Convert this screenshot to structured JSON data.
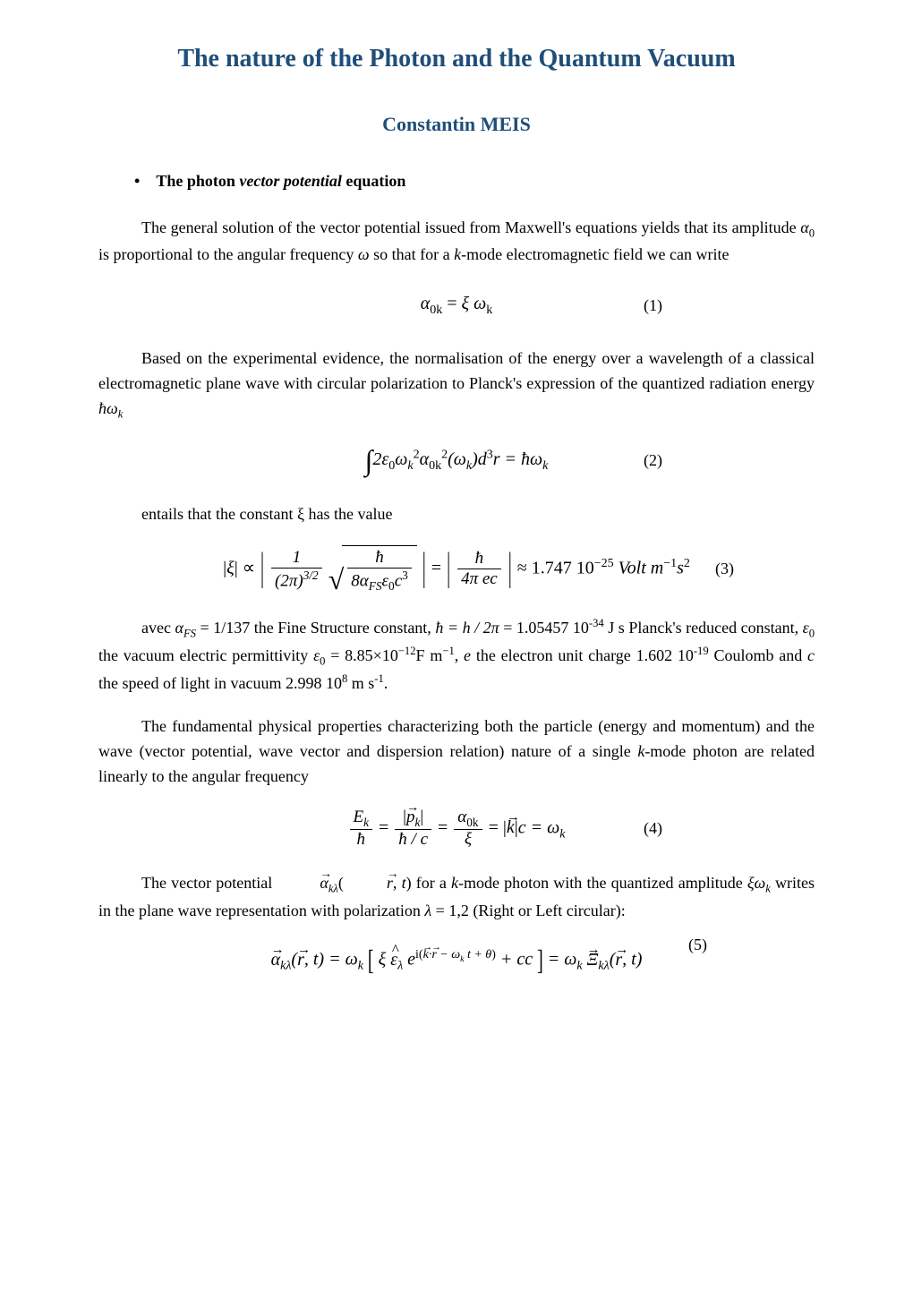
{
  "title": "The nature of the Photon and the Quantum Vacuum",
  "author": "Constantin MEIS",
  "section1": {
    "bullet": "•",
    "heading_prefix": "The photon ",
    "heading_emph": "vector potential",
    "heading_suffix": " equation"
  },
  "p1_a": "The general solution of the vector potential issued from Maxwell's equations yields that its amplitude",
  "p1_b": "is proportional to the angular frequency",
  "p1_c": "so that for a ",
  "p1_d": "-mode electromagnetic field we can write",
  "eq1": {
    "lhs_base": "α",
    "lhs_sub": "0k",
    "eq": " = ",
    "rhs_a": "ξ ω",
    "rhs_sub": "k",
    "num": "(1)"
  },
  "p2_a": "Based on the experimental evidence, the normalisation of the energy over a wavelength of a classical electromagnetic plane wave with circular polarization to Planck's expression of the quantized radiation energy",
  "eq2": {
    "pre": "2ε",
    "sub0": "0",
    "w": "ω",
    "wk": "k",
    "sq": "2",
    "a": "α",
    "a0k": "0k",
    "arg_open": "(ω",
    "arg_k": "k",
    "arg_close": ")d",
    "d3": "3",
    "r": "r = ħω",
    "rk": "k",
    "num": "(2)"
  },
  "p3": "entails that the constant ξ has the value",
  "eq3": {
    "xi": "ξ",
    "prop": " ∝ ",
    "num1": "1",
    "den1a": "(2π)",
    "den1b": "3/2",
    "hnum": "ħ",
    "hden": "8α",
    "hden_fs": "FS",
    "hden_e": "ε",
    "hden_0": "0",
    "hden_c": "c",
    "hden_3": "3",
    "eq": " = ",
    "rnum": "ħ",
    "rden": "4π ec",
    "approx": " ≈ 1.747  10",
    "exp": "−25",
    "unit": " Volt m",
    "u1": "−1",
    "s": "s",
    "u2": "2",
    "num": "(3)"
  },
  "p4_a": "avec ",
  "p4_b": " the Fine Structure constant, ",
  "p4_c": " = 1.05457 10",
  "p4_c2": " J s Planck's reduced constant, ",
  "p4_d": " the vacuum electric permittivity ",
  "p4_e": ", ",
  "p4_f": " the electron unit charge 1.602 10",
  "p4_g": " Coulomb and ",
  "p4_h": " the speed of light in vacuum 2.998 10",
  "p4_i": " m s",
  "p4_j": ".",
  "fs_val": " = 1/137",
  "hbar_def": "ħ = h / 2π",
  "exp34": "-34",
  "eps_val_a": "ε",
  "eps_val_b": " = 8.85×10",
  "eps_exp": "−12",
  "eps_unit": "F m",
  "eps_uexp": "−1",
  "e_sym": "e",
  "exp19": "-19",
  "c_sym": "c",
  "exp8": "8",
  "expm1": "-1",
  "p5": "The fundamental physical properties characterizing both the particle (energy and momentum) and the wave (vector potential, wave vector and dispersion relation) nature of a single ",
  "p5_b": "-mode photon are related linearly to the angular frequency",
  "eq4": {
    "En": "E",
    "Ek": "k",
    "hbar": "ħ",
    "eq": " = ",
    "p": "p",
    "pk": "k",
    "hc": "ħ / c",
    "a": "α",
    "a0k": "0k",
    "xi": "ξ",
    "kv": "k",
    "c": "c = ω",
    "wk": "k",
    "num": "(4)"
  },
  "p6_a": "The vector potential ",
  "p6_b": " for a ",
  "p6_c": "-mode photon with the quantized amplitude",
  "p6_d": " writes in the plane wave representation with polarization ",
  "p6_e": " = 1,2 (Right or Left circular):",
  "eq5": {
    "a": "α",
    "kl": "kλ",
    "args": "(r, t) = ω",
    "wk": "k",
    "xe": "ξ ε",
    "lam": "λ",
    "e": " e",
    "exp": "i(k·r − ω",
    "expk": "k",
    "exp2": " t + θ)",
    "cc": " + cc",
    "eq2": " = ω",
    "wk2": "k",
    "Xi": " Ξ",
    "kl2": "kλ",
    "args2": "(r, t)",
    "num": "(5)"
  },
  "k_it": "k",
  "lambda": "λ",
  "alpha0": "α",
  "sub0": "0",
  "omega": "ω",
  "hbar_omega_k": "ħω",
  "xi_omega_k": "ξω",
  "alpha_fs": "α",
  "fs": "FS",
  "eps0": "ε",
  "zero": "0"
}
